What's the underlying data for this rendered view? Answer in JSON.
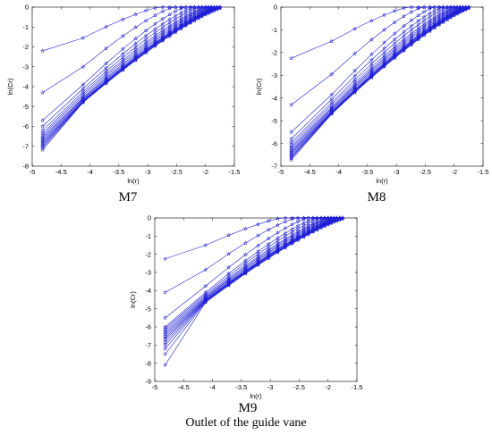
{
  "figure_caption": "Outlet of the guide vane",
  "colors": {
    "series": "#1f1fd6",
    "axis": "#000000",
    "background": "#ffffff"
  },
  "chart_data": [
    {
      "type": "line",
      "title": "M7",
      "xlabel": "ln(r)",
      "ylabel": "ln(Cr)",
      "xlim": [
        -5,
        -1.5
      ],
      "ylim": [
        -8,
        0
      ],
      "xticks": [
        -5,
        -4.5,
        -4,
        -3.5,
        -3,
        -2.5,
        -2,
        -1.5
      ],
      "yticks": [
        -8,
        -7,
        -6,
        -5,
        -4,
        -3,
        -2,
        -1,
        0
      ],
      "marker": "star",
      "grid": false,
      "x": [
        -4.82,
        -4.12,
        -3.72,
        -3.43,
        -3.21,
        -3.03,
        -2.87,
        -2.74,
        -2.62,
        -2.52,
        -2.42,
        -2.34,
        -2.26,
        -2.19,
        -2.12,
        -2.06,
        -2.0,
        -1.95,
        -1.9,
        -1.85,
        -1.8,
        -1.75
      ],
      "endpoints_at_first_x": [
        -2.2,
        -4.3,
        -5.7,
        -6.0,
        -6.2,
        -6.35,
        -6.45,
        -6.55,
        -6.62,
        -6.7,
        -6.78,
        -6.85,
        -6.92,
        -7.0,
        -7.08,
        -7.18
      ],
      "endpoints_at_second_x": [
        -1.55,
        -3.0,
        -3.9,
        -4.1,
        -4.25,
        -4.35,
        -4.45,
        -4.55,
        -4.6,
        -4.65,
        -4.7,
        -4.72,
        -4.74,
        -4.76,
        -4.78,
        -4.8
      ],
      "saturation_x": [
        -2.8,
        -2.55,
        -2.35,
        -2.2,
        -2.1,
        -2.0,
        -1.95,
        -1.9,
        -1.85,
        -1.8,
        -1.78,
        -1.76,
        -1.74,
        -1.72,
        -1.7,
        -1.68
      ]
    },
    {
      "type": "line",
      "title": "M8",
      "xlabel": "ln(r)",
      "ylabel": "ln(Cr)",
      "xlim": [
        -5,
        -1.5
      ],
      "ylim": [
        -7,
        0
      ],
      "xticks": [
        -5,
        -4.5,
        -4,
        -3.5,
        -3,
        -2.5,
        -2,
        -1.5
      ],
      "yticks": [
        -7,
        -6,
        -5,
        -4,
        -3,
        -2,
        -1,
        0
      ],
      "marker": "star",
      "grid": false,
      "x": [
        -4.82,
        -4.12,
        -3.72,
        -3.43,
        -3.21,
        -3.03,
        -2.87,
        -2.74,
        -2.62,
        -2.52,
        -2.42,
        -2.34,
        -2.26,
        -2.19,
        -2.12,
        -2.06,
        -2.0,
        -1.95,
        -1.9,
        -1.85,
        -1.8,
        -1.75
      ],
      "endpoints_at_first_x": [
        -2.25,
        -4.3,
        -5.5,
        -5.8,
        -5.95,
        -6.05,
        -6.15,
        -6.22,
        -6.3,
        -6.36,
        -6.42,
        -6.48,
        -6.55,
        -6.6,
        -6.65,
        -6.72
      ],
      "endpoints_at_second_x": [
        -1.5,
        -2.95,
        -3.85,
        -4.05,
        -4.2,
        -4.3,
        -4.4,
        -4.45,
        -4.5,
        -4.55,
        -4.6,
        -4.62,
        -4.64,
        -4.66,
        -4.68,
        -4.7
      ],
      "saturation_x": [
        -2.8,
        -2.55,
        -2.35,
        -2.2,
        -2.1,
        -2.0,
        -1.95,
        -1.9,
        -1.85,
        -1.8,
        -1.78,
        -1.76,
        -1.74,
        -1.72,
        -1.7,
        -1.68
      ]
    },
    {
      "type": "line",
      "title": "M9",
      "xlabel": "ln(r)",
      "ylabel": "ln(Cr)",
      "xlim": [
        -5,
        -1.5
      ],
      "ylim": [
        -9,
        0
      ],
      "xticks": [
        -5,
        -4.5,
        -4,
        -3.5,
        -3,
        -2.5,
        -2,
        -1.5
      ],
      "yticks": [
        -9,
        -8,
        -7,
        -6,
        -5,
        -4,
        -3,
        -2,
        -1,
        0
      ],
      "marker": "star",
      "grid": false,
      "x": [
        -4.82,
        -4.12,
        -3.72,
        -3.43,
        -3.21,
        -3.03,
        -2.87,
        -2.74,
        -2.62,
        -2.52,
        -2.42,
        -2.34,
        -2.26,
        -2.19,
        -2.12,
        -2.06,
        -2.0,
        -1.95,
        -1.9,
        -1.85,
        -1.8,
        -1.75
      ],
      "endpoints_at_first_x": [
        -2.25,
        -4.1,
        -5.5,
        -6.0,
        -6.1,
        -6.2,
        -6.3,
        -6.4,
        -6.5,
        -6.6,
        -6.7,
        -6.85,
        -7.0,
        -7.2,
        -7.5,
        -8.1
      ],
      "endpoints_at_second_x": [
        -1.5,
        -2.85,
        -3.75,
        -4.1,
        -4.2,
        -4.28,
        -4.35,
        -4.4,
        -4.45,
        -4.5,
        -4.52,
        -4.55,
        -4.57,
        -4.6,
        -4.62,
        -4.65
      ],
      "saturation_x": [
        -2.8,
        -2.55,
        -2.35,
        -2.2,
        -2.1,
        -2.0,
        -1.95,
        -1.9,
        -1.85,
        -1.8,
        -1.78,
        -1.76,
        -1.74,
        -1.72,
        -1.7,
        -1.68
      ]
    }
  ]
}
